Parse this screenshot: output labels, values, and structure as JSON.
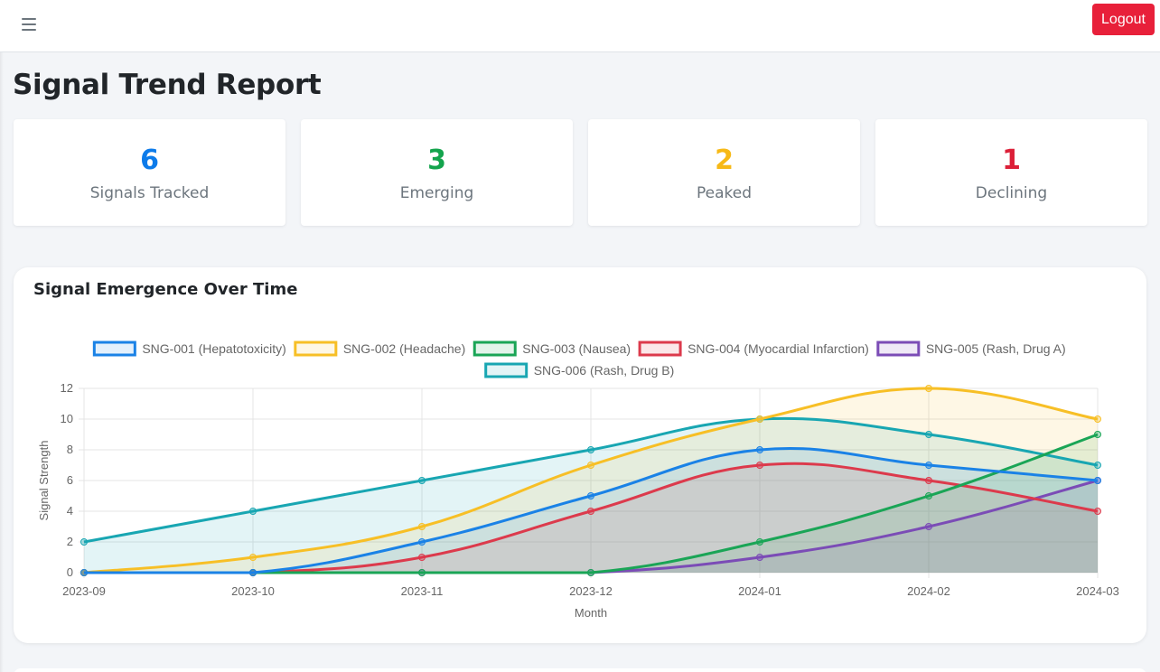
{
  "header": {
    "menu_icon": "hamburger-menu-icon",
    "logout_label": "Logout",
    "logout_color": "#e8203a"
  },
  "page": {
    "title": "Signal Trend Report"
  },
  "stats": [
    {
      "value": "6",
      "label": "Signals Tracked",
      "color": "#0d7bea"
    },
    {
      "value": "3",
      "label": "Emerging",
      "color": "#14a44d"
    },
    {
      "value": "2",
      "label": "Peaked",
      "color": "#f7b916"
    },
    {
      "value": "1",
      "label": "Declining",
      "color": "#dc1f38"
    }
  ],
  "chart_card": {
    "title": "Signal Emergence Over Time"
  },
  "chart_data": {
    "type": "area",
    "title": "Signal Emergence Over Time",
    "xlabel": "Month",
    "ylabel": "Signal Strength",
    "categories": [
      "2023-09",
      "2023-10",
      "2023-11",
      "2023-12",
      "2024-01",
      "2024-02",
      "2024-03"
    ],
    "ylim": [
      0,
      12
    ],
    "yticks": [
      "0",
      "2",
      "4",
      "6",
      "8",
      "10",
      "12"
    ],
    "grid": true,
    "legend_position": "top-center",
    "series": [
      {
        "name": "SNG-001 (Hepatotoxicity)",
        "color": "#1a82e6",
        "values": [
          0,
          0,
          2,
          5,
          8,
          7,
          6
        ]
      },
      {
        "name": "SNG-002 (Headache)",
        "color": "#f7bf26",
        "values": [
          0,
          1,
          3,
          7,
          10,
          12,
          10
        ]
      },
      {
        "name": "SNG-003 (Nausea)",
        "color": "#1aa556",
        "values": [
          0,
          0,
          0,
          0,
          2,
          5,
          9
        ]
      },
      {
        "name": "SNG-004 (Myocardial Infarction)",
        "color": "#dc3a4c",
        "values": [
          0,
          0,
          1,
          4,
          7,
          6,
          4
        ]
      },
      {
        "name": "SNG-005 (Rash, Drug A)",
        "color": "#7b4cb6",
        "values": [
          0,
          0,
          0,
          0,
          1,
          3,
          6
        ]
      },
      {
        "name": "SNG-006 (Rash, Drug B)",
        "color": "#18a6b2",
        "values": [
          2,
          4,
          6,
          8,
          10,
          9,
          7
        ]
      }
    ]
  }
}
